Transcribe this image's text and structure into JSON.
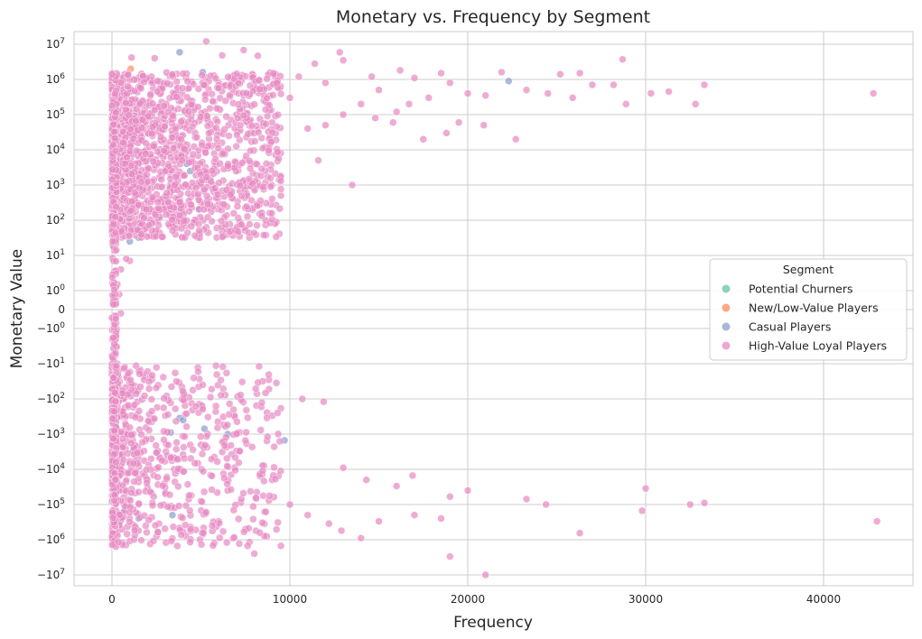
{
  "colors": {
    "grid": "#cccccc",
    "background": "#ffffff",
    "text": "#262626"
  },
  "chart_data": {
    "type": "scatter",
    "title": "Monetary vs. Frequency by Segment",
    "xlabel": "Frequency",
    "ylabel": "Monetary Value",
    "xlim": [
      -2200,
      45000
    ],
    "ylim": [
      -12000000,
      14000000
    ],
    "yscale": "symlog",
    "grid": true,
    "x_ticks": [
      {
        "value": 0,
        "label": "0"
      },
      {
        "value": 10000,
        "label": "10000"
      },
      {
        "value": 20000,
        "label": "20000"
      },
      {
        "value": 30000,
        "label": "30000"
      },
      {
        "value": 40000,
        "label": "40000"
      }
    ],
    "y_ticks": [
      {
        "value": 10000000,
        "label": "10",
        "exp": "7"
      },
      {
        "value": 1000000,
        "label": "10",
        "exp": "6"
      },
      {
        "value": 100000,
        "label": "10",
        "exp": "5"
      },
      {
        "value": 10000,
        "label": "10",
        "exp": "4"
      },
      {
        "value": 1000,
        "label": "10",
        "exp": "3"
      },
      {
        "value": 100,
        "label": "10",
        "exp": "2"
      },
      {
        "value": 10,
        "label": "10",
        "exp": "1"
      },
      {
        "value": 1,
        "label": "10",
        "exp": "0"
      },
      {
        "value": 0,
        "label": "0",
        "exp": ""
      },
      {
        "value": -1,
        "label": "−10",
        "exp": "0"
      },
      {
        "value": -10,
        "label": "−10",
        "exp": "1"
      },
      {
        "value": -100,
        "label": "−10",
        "exp": "2"
      },
      {
        "value": -1000,
        "label": "−10",
        "exp": "3"
      },
      {
        "value": -10000,
        "label": "−10",
        "exp": "4"
      },
      {
        "value": -100000,
        "label": "−10",
        "exp": "5"
      },
      {
        "value": -1000000,
        "label": "−10",
        "exp": "6"
      },
      {
        "value": -10000000,
        "label": "−10",
        "exp": "7"
      }
    ],
    "legend": {
      "title": "Segment",
      "placement": "center-right"
    },
    "series": [
      {
        "name": "Potential Churners",
        "color": "#66c2a5",
        "points": [
          [
            40,
            20
          ],
          [
            60,
            150
          ],
          [
            80,
            600
          ],
          [
            50,
            -30
          ],
          [
            70,
            -200
          ],
          [
            90,
            2000
          ],
          [
            30,
            -800
          ],
          [
            100,
            50
          ]
        ]
      },
      {
        "name": "New/Low-Value Players",
        "color": "#fc8d62",
        "points": [
          [
            1050,
            2000000
          ],
          [
            120,
            300000
          ],
          [
            300,
            400000
          ],
          [
            200,
            -50000
          ],
          [
            150,
            10000
          ],
          [
            400,
            900000
          ],
          [
            250,
            -300000
          ],
          [
            180,
            5000
          ]
        ]
      },
      {
        "name": "Casual Players",
        "color": "#8da0cb",
        "points": [
          [
            3800,
            5900000
          ],
          [
            5100,
            1600000
          ],
          [
            22300,
            900000
          ],
          [
            4400,
            2500
          ],
          [
            4900,
            200
          ],
          [
            1500,
            32
          ],
          [
            1000,
            25
          ],
          [
            150,
            -0.6
          ],
          [
            3800,
            -350
          ],
          [
            4000,
            -400
          ],
          [
            9700,
            -1500
          ],
          [
            3300,
            -900
          ],
          [
            100,
            -250000
          ],
          [
            150,
            -450000
          ],
          [
            400,
            -350000
          ],
          [
            1500,
            -250000
          ],
          [
            6500,
            -1000
          ],
          [
            5200,
            -700
          ],
          [
            200,
            -30000
          ],
          [
            700,
            -150000
          ],
          [
            1200,
            -3000
          ],
          [
            3400,
            -200000
          ],
          [
            4200,
            4000
          ],
          [
            600,
            2000
          ]
        ]
      },
      {
        "name": "High-Value Loyal Players",
        "color": "#e78ac3",
        "points": [
          [
            1100,
            4200000
          ],
          [
            2400,
            4000000
          ],
          [
            5300,
            12000000
          ],
          [
            6200,
            4800000
          ],
          [
            7400,
            6800000
          ],
          [
            8200,
            4700000
          ],
          [
            9200,
            1400000
          ],
          [
            10500,
            1200000
          ],
          [
            11400,
            2800000
          ],
          [
            12800,
            5900000
          ],
          [
            13000,
            3500000
          ],
          [
            14600,
            1200000
          ],
          [
            16200,
            1800000
          ],
          [
            17000,
            1100000
          ],
          [
            18500,
            1500000
          ],
          [
            19000,
            800000
          ],
          [
            20000,
            400000
          ],
          [
            21000,
            350000
          ],
          [
            21900,
            1600000
          ],
          [
            22700,
            20000
          ],
          [
            23300,
            500000
          ],
          [
            24500,
            400000
          ],
          [
            25200,
            1400000
          ],
          [
            25900,
            300000
          ],
          [
            26300,
            1500000
          ],
          [
            27000,
            700000
          ],
          [
            28200,
            700000
          ],
          [
            28700,
            3700000
          ],
          [
            28900,
            200000
          ],
          [
            30300,
            400000
          ],
          [
            31300,
            450000
          ],
          [
            32800,
            200000
          ],
          [
            33300,
            700000
          ],
          [
            42800,
            400000
          ],
          [
            11600,
            5000
          ],
          [
            12000,
            50000
          ],
          [
            13500,
            1000
          ],
          [
            14800,
            80000
          ],
          [
            15800,
            60000
          ],
          [
            16700,
            200000
          ],
          [
            17500,
            20000
          ],
          [
            18800,
            30000
          ],
          [
            20900,
            50000
          ],
          [
            9500,
            500
          ],
          [
            8000,
            800
          ],
          [
            5000,
            1000
          ],
          [
            6000,
            300
          ],
          [
            4000,
            2000
          ],
          [
            2600,
            100
          ],
          [
            1900,
            300
          ],
          [
            1500,
            50
          ],
          [
            1000,
            7
          ],
          [
            800,
            8
          ],
          [
            500,
            4
          ],
          [
            400,
            0.8
          ],
          [
            300,
            1.5
          ],
          [
            200,
            0.3
          ],
          [
            100,
            0.5
          ],
          [
            8000,
            500000
          ],
          [
            10000,
            300000
          ],
          [
            12000,
            800000
          ],
          [
            14000,
            200000
          ],
          [
            15000,
            500000
          ],
          [
            6000,
            800000
          ],
          [
            7000,
            100000
          ],
          [
            3000,
            60000
          ],
          [
            2000,
            30000
          ],
          [
            4500,
            250000
          ],
          [
            5500,
            150000
          ],
          [
            9000,
            60000
          ],
          [
            11000,
            40000
          ],
          [
            13000,
            100000
          ],
          [
            16000,
            120000
          ],
          [
            19500,
            60000
          ],
          [
            17800,
            300000
          ],
          [
            500,
            -0.2
          ],
          [
            200,
            -2
          ],
          [
            400,
            -15
          ],
          [
            1600,
            -15
          ],
          [
            3000,
            -300
          ],
          [
            5000,
            -2000
          ],
          [
            7000,
            -3000
          ],
          [
            10700,
            -100
          ],
          [
            11900,
            -120
          ],
          [
            13000,
            -9000
          ],
          [
            14300,
            -20000
          ],
          [
            16000,
            -30000
          ],
          [
            16900,
            -15000
          ],
          [
            18500,
            -250000
          ],
          [
            19000,
            -3000000
          ],
          [
            21000,
            -10000000
          ],
          [
            23300,
            -70000
          ],
          [
            24400,
            -100000
          ],
          [
            26300,
            -650000
          ],
          [
            29800,
            -150000
          ],
          [
            30000,
            -35000
          ],
          [
            32500,
            -100000
          ],
          [
            33300,
            -90000
          ],
          [
            43000,
            -300000
          ],
          [
            8000,
            -2500000
          ],
          [
            9500,
            -1500000
          ],
          [
            8700,
            -800000
          ],
          [
            12900,
            -550000
          ],
          [
            14000,
            -900000
          ],
          [
            15000,
            -300000
          ],
          [
            17000,
            -200000
          ],
          [
            19000,
            -60000
          ],
          [
            20000,
            -40000
          ],
          [
            12200,
            -350000
          ],
          [
            11000,
            -200000
          ],
          [
            7500,
            -500000
          ],
          [
            6000,
            -300000
          ],
          [
            4000,
            -600000
          ],
          [
            2500,
            -800000
          ],
          [
            1000,
            -1100000
          ],
          [
            1500,
            -100000
          ],
          [
            3000,
            -50000
          ],
          [
            5000,
            -80000
          ],
          [
            2000,
            -20000
          ],
          [
            3500,
            -10000
          ],
          [
            6500,
            -40000
          ],
          [
            9000,
            -20000
          ],
          [
            10000,
            -100000
          ],
          [
            700,
            -300
          ],
          [
            1200,
            -1000
          ],
          [
            1800,
            -3000
          ],
          [
            2200,
            -5000
          ],
          [
            600,
            -100
          ],
          [
            300,
            -10
          ],
          [
            200,
            -50
          ]
        ]
      }
    ]
  }
}
